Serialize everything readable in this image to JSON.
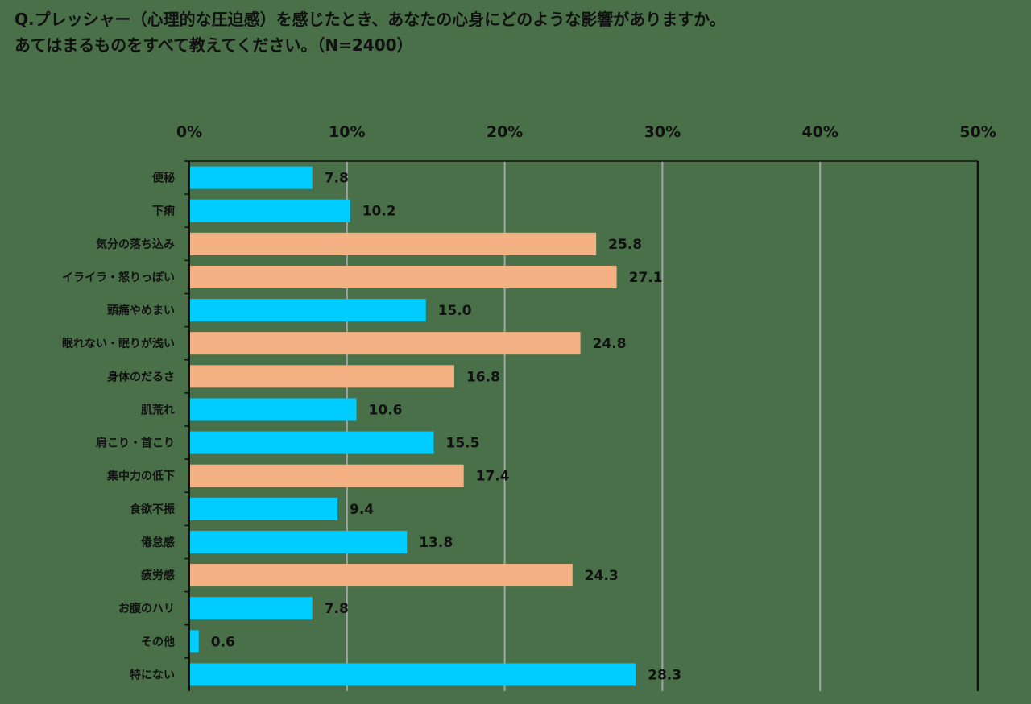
{
  "title_lines": [
    "Q.プレッシャー（心理的な圧迫感）を感じたとき、あなたの心身にどのような影響がありますか。",
    "あてはまるものをすべて教えてください。（N=2400）"
  ],
  "colors": {
    "background": "#4a7049",
    "bar_blue": "#00ccff",
    "bar_salmon": "#f4b183",
    "gridline": "#a6a6a6",
    "axis": "#111111"
  },
  "chart_data": {
    "type": "bar",
    "orientation": "horizontal",
    "title": "Q.プレッシャー（心理的な圧迫感）を感じたとき、あなたの心身にどのような影響がありますか。あてはまるものをすべて教えてください。（N=2400）",
    "xlim": [
      0,
      50
    ],
    "x_ticks": [
      0,
      10,
      20,
      30,
      40,
      50
    ],
    "x_tick_labels": [
      "0%",
      "10%",
      "20%",
      "30%",
      "40%",
      "50%"
    ],
    "x_axis_position": "top",
    "grid": true,
    "categories": [
      "便秘",
      "下痢",
      "気分の落ち込み",
      "イライラ・怒りっぽい",
      "頭痛やめまい",
      "眠れない・眠りが浅い",
      "身体のだるさ",
      "肌荒れ",
      "肩こり・首こり",
      "集中力の低下",
      "食欲不振",
      "倦怠感",
      "疲労感",
      "お腹のハリ",
      "その他",
      "特にない"
    ],
    "values": [
      7.8,
      10.2,
      25.8,
      27.1,
      15.0,
      24.8,
      16.8,
      10.6,
      15.5,
      17.4,
      9.4,
      13.8,
      24.3,
      7.8,
      0.6,
      28.3
    ],
    "value_labels": [
      "7.8",
      "10.2",
      "25.8",
      "27.1",
      "15.0",
      "24.8",
      "16.8",
      "10.6",
      "15.5",
      "17.4",
      "9.4",
      "13.8",
      "24.3",
      "7.8",
      "0.6",
      "28.3"
    ],
    "bar_colors": [
      "blue",
      "blue",
      "salmon",
      "salmon",
      "blue",
      "salmon",
      "salmon",
      "blue",
      "blue",
      "salmon",
      "blue",
      "blue",
      "salmon",
      "blue",
      "blue",
      "blue"
    ]
  }
}
